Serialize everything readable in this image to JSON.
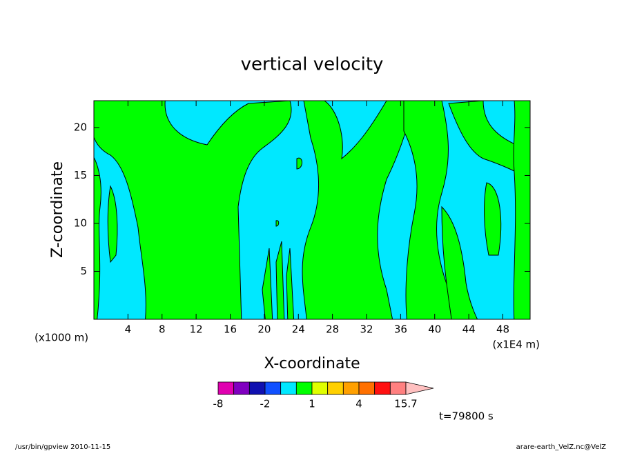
{
  "chart_data": {
    "type": "contour",
    "title": "vertical velocity",
    "x_label": "X-coordinate",
    "y_label": "Z-coordinate",
    "x_unit": "(x1E4 m)",
    "y_unit": "(x1000 m)",
    "xlim": [
      0,
      51.2
    ],
    "xticks": [
      4,
      8,
      12,
      16,
      20,
      24,
      28,
      32,
      36,
      40,
      44,
      48
    ],
    "ylim": [
      0,
      22.8
    ],
    "yticks": [
      5,
      10,
      15,
      20
    ],
    "colorbar": {
      "levels": [
        -8,
        -5,
        -3,
        -2,
        -1,
        0,
        1,
        2,
        3,
        4,
        8,
        12,
        15.7
      ],
      "colors": [
        "#e000b0",
        "#8000c0",
        "#1010b0",
        "#1050ff",
        "#00e8ff",
        "#00ff00",
        "#e0ff00",
        "#ffd000",
        "#ffa000",
        "#ff7000",
        "#ff1010",
        "#ff8080"
      ],
      "extend_color": "#ffc0c0",
      "ticks": [
        -8,
        -2,
        1,
        4,
        15.7
      ]
    },
    "annotation": "t=79800 s",
    "footer_left": "/usr/bin/gpview  2010-11-15",
    "footer_right": "arare-earth_VelZ.nc@VelZ"
  }
}
